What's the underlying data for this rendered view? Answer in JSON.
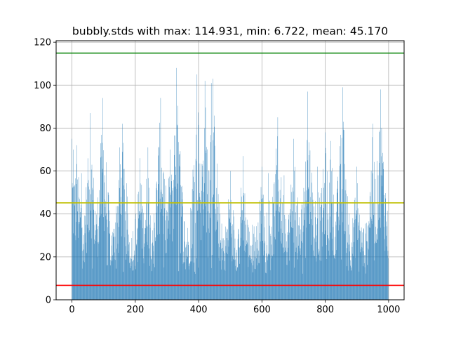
{
  "chart_data": {
    "type": "bar",
    "title": "bubbly.stds with max: 114.931, min: 6.722, mean: 45.170",
    "xlabel": "",
    "ylabel": "",
    "xlim": [
      -50,
      1049
    ],
    "ylim": [
      0,
      120.7
    ],
    "grid": true,
    "bar_color": "#1f77b4",
    "x_ticks": [
      0,
      200,
      400,
      600,
      800,
      1000
    ],
    "y_ticks": [
      0,
      20,
      40,
      60,
      80,
      100,
      120
    ],
    "x_tick_labels": [
      "0",
      "200",
      "400",
      "600",
      "800",
      "1000"
    ],
    "y_tick_labels": [
      "0",
      "20",
      "40",
      "60",
      "80",
      "100",
      "120"
    ],
    "reference_lines": [
      {
        "name": "max",
        "value": 114.931,
        "color": "#008000"
      },
      {
        "name": "mean",
        "value": 45.17,
        "color": "#bfbf00"
      },
      {
        "name": "min",
        "value": 6.722,
        "color": "#ff0000"
      }
    ],
    "bar_count": 1000,
    "peaks": [
      [
        0,
        75
      ],
      [
        5,
        70
      ],
      [
        15,
        72
      ],
      [
        30,
        59
      ],
      [
        58,
        87
      ],
      [
        98,
        94
      ],
      [
        150,
        71
      ],
      [
        160,
        82
      ],
      [
        215,
        66
      ],
      [
        240,
        71
      ],
      [
        280,
        94
      ],
      [
        310,
        70
      ],
      [
        330,
        108
      ],
      [
        340,
        68
      ],
      [
        395,
        105
      ],
      [
        420,
        102
      ],
      [
        440,
        101
      ],
      [
        445,
        103
      ],
      [
        500,
        60
      ],
      [
        540,
        67
      ],
      [
        600,
        62
      ],
      [
        620,
        59
      ],
      [
        650,
        85
      ],
      [
        670,
        58
      ],
      [
        700,
        75
      ],
      [
        745,
        97
      ],
      [
        775,
        62
      ],
      [
        800,
        78
      ],
      [
        818,
        74
      ],
      [
        855,
        99
      ],
      [
        900,
        62
      ],
      [
        950,
        82
      ],
      [
        975,
        98
      ],
      [
        1000,
        48
      ]
    ]
  }
}
